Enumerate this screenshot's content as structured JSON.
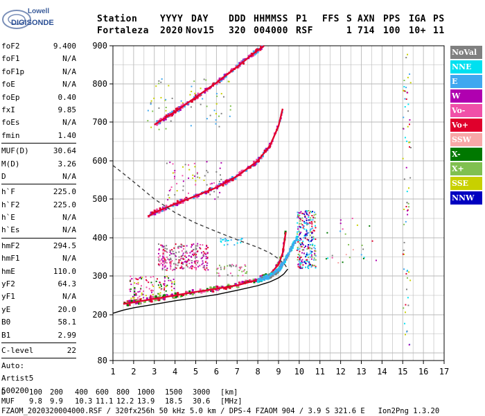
{
  "logo": {
    "line1": "Lowell",
    "line2": "DIGISONDE"
  },
  "header": {
    "labels": [
      "Station",
      "YYYY",
      "DAY",
      "DDD",
      "HHMMSS",
      "P1",
      "FFS",
      "S",
      "AXN",
      "PPS",
      "IGA",
      "PS"
    ],
    "values": [
      "Fortaleza",
      "2020",
      "Nov15",
      "320",
      "004000",
      "RSF",
      "1",
      "714",
      "100",
      "10+",
      "11"
    ]
  },
  "params": [
    [
      {
        "name": "foF2",
        "value": "9.400"
      },
      {
        "name": "foF1",
        "value": "N/A"
      },
      {
        "name": "foF1p",
        "value": "N/A"
      },
      {
        "name": "foE",
        "value": "N/A"
      },
      {
        "name": "foEp",
        "value": "0.40"
      },
      {
        "name": "fxI",
        "value": "9.85"
      },
      {
        "name": "foEs",
        "value": "N/A"
      },
      {
        "name": "fmin",
        "value": "1.40"
      }
    ],
    [
      {
        "name": "MUF(D)",
        "value": "30.64"
      },
      {
        "name": "M(D)",
        "value": "3.26"
      },
      {
        "name": "D",
        "value": "N/A"
      }
    ],
    [
      {
        "name": "h`F",
        "value": "225.0"
      },
      {
        "name": "h`F2",
        "value": "225.0"
      },
      {
        "name": "h`E",
        "value": "N/A"
      },
      {
        "name": "h`Es",
        "value": "N/A"
      }
    ],
    [
      {
        "name": "hmF2",
        "value": "294.5"
      },
      {
        "name": "hmF1",
        "value": "N/A"
      },
      {
        "name": "hmE",
        "value": "110.0"
      },
      {
        "name": "yF2",
        "value": "64.3"
      },
      {
        "name": "yF1",
        "value": "N/A"
      },
      {
        "name": "yE",
        "value": "20.0"
      },
      {
        "name": "B0",
        "value": "58.1"
      },
      {
        "name": "B1",
        "value": "2.99"
      }
    ],
    [
      {
        "name": "C-level",
        "value": "22"
      }
    ]
  ],
  "autoscaling": [
    "Auto:",
    "Artist5",
    "500200"
  ],
  "legend": [
    {
      "label": "NoVal",
      "color": "#808080"
    },
    {
      "label": "NNE",
      "color": "#00e0f0"
    },
    {
      "label": "E",
      "color": "#40a8f0"
    },
    {
      "label": "W",
      "color": "#b000b0"
    },
    {
      "label": "Vo-",
      "color": "#f050a8"
    },
    {
      "label": "Vo+",
      "color": "#e0002c"
    },
    {
      "label": "SSW",
      "color": "#f8a8a8"
    },
    {
      "label": "X-",
      "color": "#007800"
    },
    {
      "label": "X+",
      "color": "#80c050"
    },
    {
      "label": "SSE",
      "color": "#c8d000"
    },
    {
      "label": "NNW",
      "color": "#0000c0"
    }
  ],
  "chart_data": {
    "type": "scatter",
    "xlim": [
      1,
      17
    ],
    "ylim": [
      80,
      900
    ],
    "x_ticks": [
      "1",
      "2",
      "3",
      "4",
      "5",
      "6",
      "7",
      "8",
      "9",
      "10",
      "11",
      "12",
      "13",
      "14",
      "15",
      "16",
      "17"
    ],
    "y_ticks": [
      "900",
      "800",
      "700",
      "600",
      "500",
      "400",
      "300",
      "200",
      "80"
    ],
    "y_tick_values": [
      900,
      800,
      700,
      600,
      500,
      400,
      300,
      200,
      80
    ],
    "grid": true,
    "traces": [
      {
        "name": "o-trace",
        "color": "#e0002c",
        "x": [
          1.5,
          2.0,
          3.0,
          4.0,
          5.0,
          6.0,
          7.0,
          8.0,
          8.6,
          9.0,
          9.2,
          9.35
        ],
        "y": [
          228,
          232,
          241,
          250,
          259,
          267,
          276,
          290,
          305,
          330,
          360,
          415
        ]
      },
      {
        "name": "x-trace",
        "color": "#40a8f0",
        "x": [
          8.0,
          8.6,
          9.0,
          9.3,
          9.6,
          9.9
        ],
        "y": [
          288,
          300,
          315,
          340,
          370,
          400
        ]
      },
      {
        "name": "2nd-hop",
        "color": "#e0002c",
        "x": [
          2.7,
          3.0,
          4.0,
          5.0,
          6.0,
          7.0,
          8.0,
          8.6,
          9.0,
          9.2
        ],
        "y": [
          455,
          465,
          487,
          508,
          530,
          560,
          600,
          640,
          690,
          735
        ]
      },
      {
        "name": "3rd-hop",
        "color": "#e0002c",
        "x": [
          3.0,
          4.0,
          5.0,
          6.0,
          7.0,
          7.8,
          8.3
        ],
        "y": [
          693,
          727,
          765,
          803,
          845,
          880,
          900
        ]
      },
      {
        "name": "model-profile",
        "color": "#000000",
        "x": [
          1.0,
          1.5,
          2.0,
          3.0,
          4.0,
          5.0,
          6.0,
          7.0,
          8.0,
          8.6,
          9.0,
          9.25,
          9.45
        ],
        "y": [
          204,
          212,
          218,
          227,
          236,
          244,
          252,
          263,
          275,
          285,
          295,
          305,
          318
        ]
      },
      {
        "name": "dashed-curve",
        "color": "#404040",
        "dash": true,
        "x": [
          1.0,
          1.5,
          2.0,
          3.0,
          4.0,
          5.0,
          6.0,
          7.0,
          8.0,
          8.6,
          9.0,
          9.3,
          9.45
        ],
        "y": [
          588,
          567,
          545,
          500,
          465,
          438,
          416,
          395,
          375,
          360,
          345,
          330,
          318
        ]
      }
    ]
  },
  "mufs": {
    "d_label": "D",
    "d_values": [
      "100",
      "200",
      "400",
      "600",
      "800",
      "1000",
      "1500",
      "3000"
    ],
    "d_unit": "[km]",
    "muf_label": "MUF",
    "muf_values": [
      "9.8",
      "9.9",
      "10.3",
      "11.1",
      "12.2",
      "13.9",
      "18.5",
      "30.6"
    ],
    "muf_unit": "[MHz]"
  },
  "footer": "FZAOM_2020320004000.RSF / 320fx256h 50 kHz 5.0 km / DPS-4 FZAOM 904 / 3.9 S 321.6 E   Ion2Png 1.3.20"
}
